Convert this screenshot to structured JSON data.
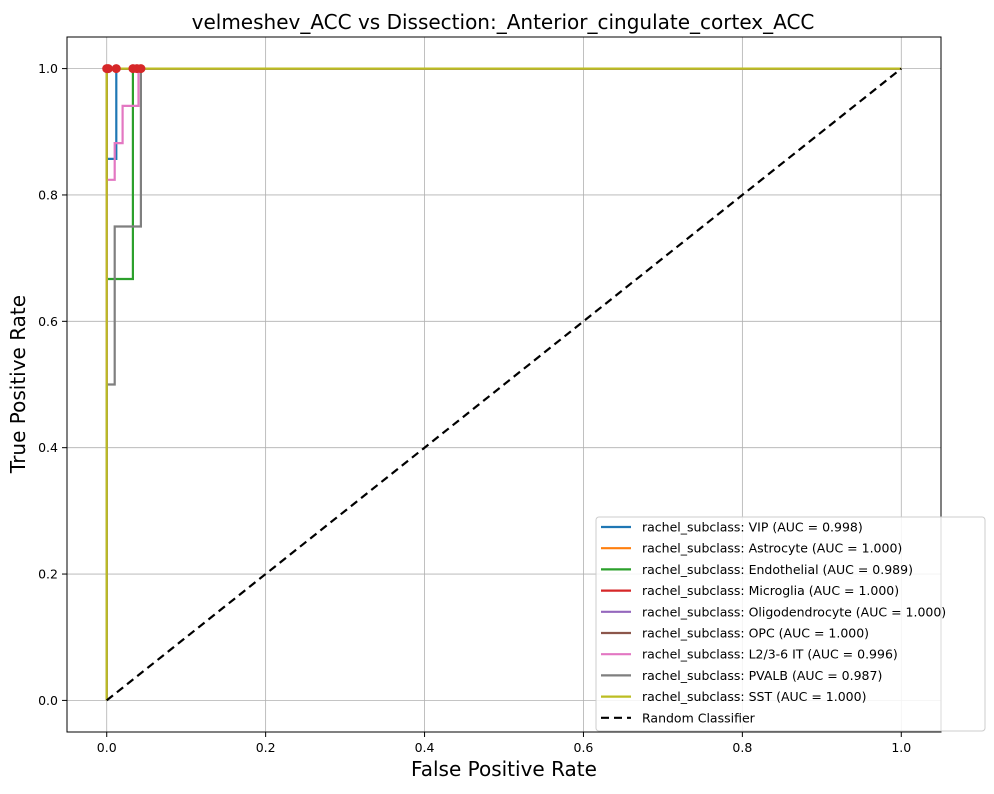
{
  "chart_data": {
    "type": "line",
    "title": "velmeshev_ACC vs Dissection:_Anterior_cingulate_cortex_ACC",
    "xlabel": "False Positive Rate",
    "ylabel": "True Positive Rate",
    "xlim": [
      -0.05,
      1.05
    ],
    "ylim": [
      -0.05,
      1.05
    ],
    "xticks": [
      0.0,
      0.2,
      0.4,
      0.6,
      0.8,
      1.0
    ],
    "yticks": [
      0.0,
      0.2,
      0.4,
      0.6,
      0.8,
      1.0
    ],
    "xtick_labels": [
      "0.0",
      "0.2",
      "0.4",
      "0.6",
      "0.8",
      "1.0"
    ],
    "ytick_labels": [
      "0.0",
      "0.2",
      "0.4",
      "0.6",
      "0.8",
      "1.0"
    ],
    "grid": true,
    "legend_position": "lower-right",
    "series": [
      {
        "name": "rachel_subclass: VIP (AUC = 0.998)",
        "color": "#1f77b4",
        "x": [
          0,
          0,
          0.012,
          0.012,
          1
        ],
        "y": [
          0,
          0.857,
          0.857,
          1,
          1
        ]
      },
      {
        "name": "rachel_subclass: Astrocyte (AUC = 1.000)",
        "color": "#ff7f0e",
        "x": [
          0,
          0,
          1
        ],
        "y": [
          0,
          1,
          1
        ]
      },
      {
        "name": "rachel_subclass: Endothelial (AUC = 0.989)",
        "color": "#2ca02c",
        "x": [
          0,
          0,
          0.033,
          0.033,
          1
        ],
        "y": [
          0,
          0.667,
          0.667,
          1,
          1
        ]
      },
      {
        "name": "rachel_subclass: Microglia (AUC = 1.000)",
        "color": "#d62728",
        "x": [
          0,
          0,
          1
        ],
        "y": [
          0,
          1,
          1
        ]
      },
      {
        "name": "rachel_subclass: Oligodendrocyte (AUC = 1.000)",
        "color": "#9467bd",
        "x": [
          0,
          0,
          1
        ],
        "y": [
          0,
          1,
          1
        ]
      },
      {
        "name": "rachel_subclass: OPC (AUC = 1.000)",
        "color": "#8c564b",
        "x": [
          0,
          0,
          1
        ],
        "y": [
          0,
          1,
          1
        ]
      },
      {
        "name": "rachel_subclass: L2/3-6 IT (AUC = 0.996)",
        "color": "#e377c2",
        "x": [
          0,
          0,
          0.01,
          0.01,
          0.02,
          0.02,
          0.03,
          0.03,
          0.04,
          0.04,
          1
        ],
        "y": [
          0,
          0.824,
          0.824,
          0.882,
          0.882,
          0.941,
          0.941,
          0.941,
          0.941,
          1,
          1
        ]
      },
      {
        "name": "rachel_subclass: PVALB (AUC = 0.987)",
        "color": "#7f7f7f",
        "x": [
          0,
          0,
          0.01,
          0.01,
          0.043,
          0.043,
          1
        ],
        "y": [
          0,
          0.5,
          0.5,
          0.75,
          0.75,
          1,
          1
        ]
      },
      {
        "name": "rachel_subclass: SST (AUC = 1.000)",
        "color": "#bcbd22",
        "x": [
          0,
          0,
          1
        ],
        "y": [
          0,
          1,
          1
        ]
      },
      {
        "name": "Random Classifier",
        "color": "#000000",
        "dashed": true,
        "x": [
          0,
          1
        ],
        "y": [
          0,
          1
        ]
      }
    ],
    "markers": {
      "color": "#d62728",
      "points": [
        {
          "x": 0.0,
          "y": 1.0
        },
        {
          "x": 0.002,
          "y": 1.0
        },
        {
          "x": 0.012,
          "y": 1.0
        },
        {
          "x": 0.033,
          "y": 1.0
        },
        {
          "x": 0.038,
          "y": 1.0
        },
        {
          "x": 0.043,
          "y": 1.0
        }
      ]
    }
  }
}
